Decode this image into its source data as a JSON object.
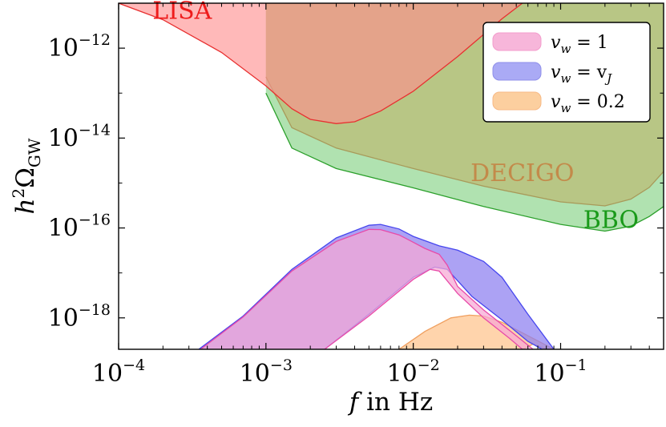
{
  "chart_data": {
    "type": "area",
    "xlabel_var": "f",
    "xlabel_rest": " in Hz",
    "ylabel_main": "h",
    "ylabel_sup": "2",
    "ylabel_omega": "Ω",
    "ylabel_sub": "GW",
    "x_scale": "log",
    "y_scale": "log",
    "xlim": [
      0.0001,
      0.5
    ],
    "ylim": [
      2e-19,
      1e-11
    ],
    "x_ticks": [
      {
        "value": 0.0001,
        "base": "10",
        "exp": "−4"
      },
      {
        "value": 0.001,
        "base": "10",
        "exp": "−3"
      },
      {
        "value": 0.01,
        "base": "10",
        "exp": "−2"
      },
      {
        "value": 0.1,
        "base": "10",
        "exp": "−1"
      }
    ],
    "y_ticks": [
      {
        "value": 1e-12,
        "base": "10",
        "exp": "−12"
      },
      {
        "value": 1e-14,
        "base": "10",
        "exp": "−14"
      },
      {
        "value": 1e-16,
        "base": "10",
        "exp": "−16"
      },
      {
        "value": 1e-18,
        "base": "10",
        "exp": "−18"
      }
    ],
    "grid": false,
    "legend_position": "top-right",
    "regions": [
      {
        "name": "BBO",
        "label": "BBO",
        "fill": "#7fd17f",
        "stroke": "#2ca02c",
        "label_color": "#1a9a1a",
        "upper": [
          [
            0.001,
            1e-11
          ],
          [
            0.5,
            1e-11
          ]
        ],
        "lower": [
          [
            0.001,
            1e-13
          ],
          [
            0.0015,
            6e-15
          ],
          [
            0.003,
            2.1e-15
          ],
          [
            0.01,
            7.8e-16
          ],
          [
            0.03,
            3e-16
          ],
          [
            0.1,
            1.2e-16
          ],
          [
            0.2,
            8.5e-17
          ],
          [
            0.3,
            1.1e-16
          ],
          [
            0.4,
            1.8e-16
          ],
          [
            0.5,
            3e-16
          ]
        ]
      },
      {
        "name": "DECIGO",
        "label": "DECIGO",
        "fill": "#bdb56a",
        "stroke": "#a89a5a",
        "label_color": "#c38a4a",
        "upper": [
          [
            0.001,
            1e-11
          ],
          [
            0.5,
            1e-11
          ]
        ],
        "lower": [
          [
            0.001,
            2.3e-13
          ],
          [
            0.0015,
            1.7e-14
          ],
          [
            0.003,
            6e-15
          ],
          [
            0.01,
            2.1e-15
          ],
          [
            0.03,
            8.5e-16
          ],
          [
            0.1,
            3.8e-16
          ],
          [
            0.2,
            3.1e-16
          ],
          [
            0.3,
            4.4e-16
          ],
          [
            0.4,
            8e-16
          ],
          [
            0.5,
            1.8e-15
          ]
        ]
      },
      {
        "name": "LISA",
        "label": "LISA",
        "fill": "#ff8e8e",
        "stroke": "#e83030",
        "label_color": "#ee1c1c",
        "upper": [
          [
            0.0001,
            1e-11
          ],
          [
            0.055,
            1e-11
          ]
        ],
        "lower": [
          [
            0.0001,
            1e-11
          ],
          [
            0.0002,
            4.3e-12
          ],
          [
            0.0005,
            8e-13
          ],
          [
            0.001,
            1.45e-13
          ],
          [
            0.0015,
            4.5e-14
          ],
          [
            0.002,
            2.6e-14
          ],
          [
            0.003,
            2.1e-14
          ],
          [
            0.004,
            2.3e-14
          ],
          [
            0.006,
            4e-14
          ],
          [
            0.01,
            1.1e-13
          ],
          [
            0.02,
            6.5e-13
          ],
          [
            0.04,
            4.5e-12
          ],
          [
            0.055,
            1e-11
          ]
        ]
      }
    ],
    "series": [
      {
        "name": "v_w = 0.2",
        "fill": "#ffc48c",
        "stroke": "#f0a060",
        "upper": [
          [
            0.008,
            2e-19
          ],
          [
            0.012,
            5e-19
          ],
          [
            0.018,
            1e-18
          ],
          [
            0.024,
            1.15e-18
          ],
          [
            0.03,
            1.1e-18
          ],
          [
            0.04,
            8e-19
          ],
          [
            0.06,
            4e-19
          ],
          [
            0.09,
            2e-19
          ]
        ],
        "lower": [
          [
            0.055,
            2e-19
          ],
          [
            0.065,
            2.6e-19
          ],
          [
            0.075,
            2.2e-19
          ],
          [
            0.08,
            2e-19
          ]
        ]
      },
      {
        "name": "v_w = v_J",
        "fill": "#8c7ef0",
        "stroke": "#4646ee",
        "upper": [
          [
            0.00035,
            2e-19
          ],
          [
            0.0007,
            1.1e-18
          ],
          [
            0.0015,
            1.2e-17
          ],
          [
            0.003,
            6e-17
          ],
          [
            0.005,
            1.15e-16
          ],
          [
            0.006,
            1.2e-16
          ],
          [
            0.008,
            9.5e-17
          ],
          [
            0.01,
            6.5e-17
          ],
          [
            0.015,
            4e-17
          ],
          [
            0.02,
            3.2e-17
          ],
          [
            0.03,
            1.8e-17
          ],
          [
            0.04,
            8e-18
          ],
          [
            0.06,
            1.2e-18
          ],
          [
            0.09,
            2e-19
          ]
        ],
        "lower": [
          [
            0.0025,
            2e-19
          ],
          [
            0.005,
            1.2e-18
          ],
          [
            0.01,
            8e-18
          ],
          [
            0.014,
            1.35e-17
          ],
          [
            0.017,
            1.2e-17
          ],
          [
            0.025,
            3e-18
          ],
          [
            0.04,
            9e-19
          ],
          [
            0.06,
            3e-19
          ],
          [
            0.075,
            2e-19
          ]
        ]
      },
      {
        "name": "v_w = 1",
        "fill": "#f7a8d4",
        "stroke": "#e84aa8",
        "upper": [
          [
            0.00036,
            2e-19
          ],
          [
            0.0007,
            1.05e-18
          ],
          [
            0.0015,
            1.1e-17
          ],
          [
            0.003,
            5e-17
          ],
          [
            0.005,
            9.3e-17
          ],
          [
            0.006,
            9.2e-17
          ],
          [
            0.008,
            7e-17
          ],
          [
            0.01,
            4.8e-17
          ],
          [
            0.012,
            3.5e-17
          ],
          [
            0.015,
            2.6e-17
          ],
          [
            0.017,
            1.5e-17
          ],
          [
            0.02,
            5e-18
          ],
          [
            0.03,
            1.5e-18
          ],
          [
            0.05,
            4e-19
          ],
          [
            0.065,
            2e-19
          ]
        ],
        "lower": [
          [
            0.0025,
            2e-19
          ],
          [
            0.005,
            1.1e-18
          ],
          [
            0.01,
            7.2e-18
          ],
          [
            0.013,
            1.2e-17
          ],
          [
            0.015,
            1.1e-17
          ],
          [
            0.02,
            3.5e-18
          ],
          [
            0.03,
            1e-18
          ],
          [
            0.045,
            3.5e-19
          ],
          [
            0.055,
            2e-19
          ]
        ]
      }
    ],
    "legend": [
      {
        "label_var": "v",
        "label_sub": "w",
        "label_rest": " = 1",
        "fill": "#f7b6da",
        "stroke": "#f39ccc"
      },
      {
        "label_var": "v",
        "label_sub": "w",
        "label_rest": " = v",
        "label_sub2": "J",
        "fill": "#aaaaf5",
        "stroke": "#8f8fe9"
      },
      {
        "label_var": "v",
        "label_sub": "w",
        "label_rest": " = 0.2",
        "fill": "#fccf9f",
        "stroke": "#f7b985"
      }
    ]
  }
}
